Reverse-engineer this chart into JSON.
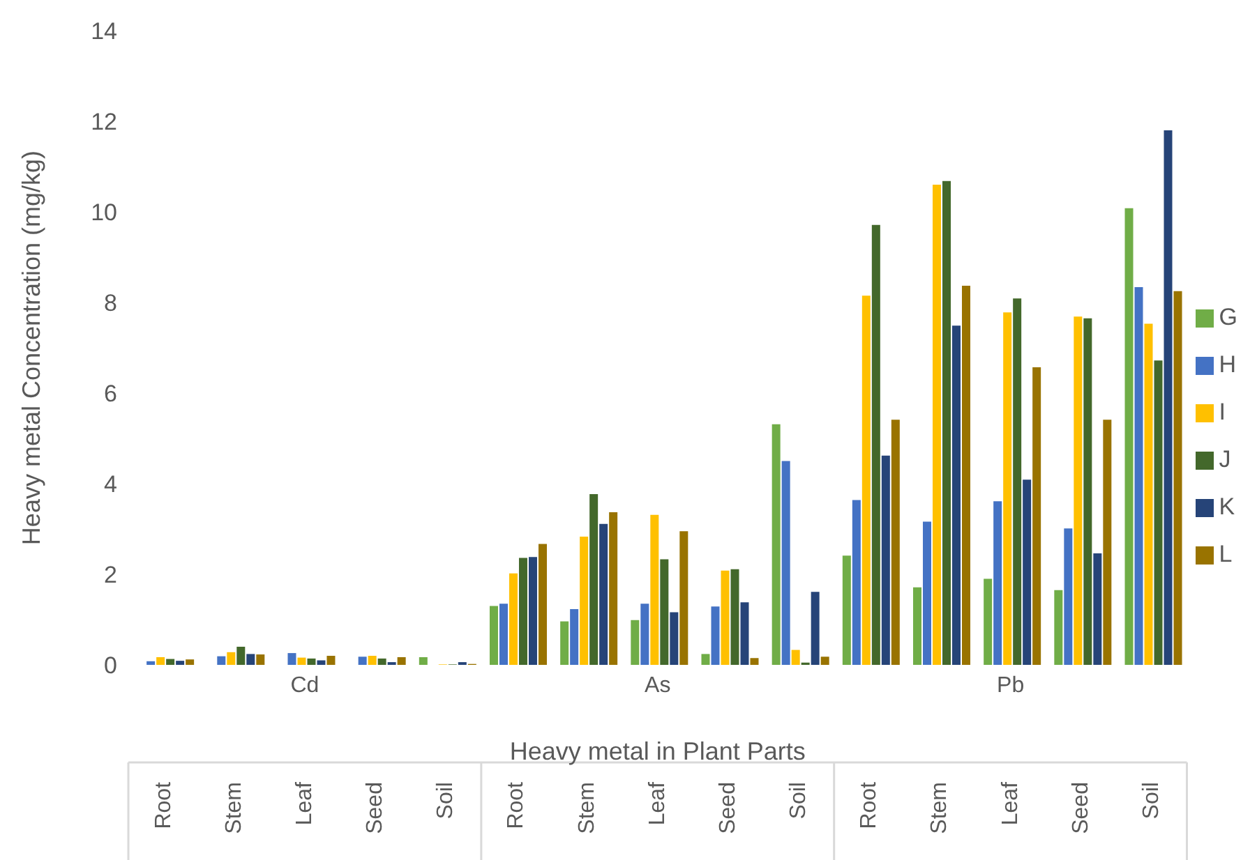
{
  "chart_data": {
    "type": "bar",
    "xlabel": "Heavy metal in Plant Parts",
    "ylabel": "Heavy metal Concentration (mg/kg)",
    "categories": [
      "Root",
      "Stem",
      "Leaf",
      "Seed",
      "Soil",
      "Root",
      "Stem",
      "Leaf",
      "Seed",
      "Soil",
      "Root",
      "Stem",
      "Leaf",
      "Seed",
      "Soil"
    ],
    "annotations": [
      "Cd",
      "As",
      "Pb"
    ],
    "series": [
      {
        "name": "G",
        "color": "#70ad47",
        "values": [
          0,
          0,
          0,
          0,
          0.17,
          1.3,
          0.96,
          0.99,
          0.24,
          5.31,
          2.41,
          1.71,
          1.9,
          1.65,
          10.08
        ]
      },
      {
        "name": "H",
        "color": "#4472c4",
        "values": [
          0.08,
          0.19,
          0.26,
          0.18,
          0,
          1.35,
          1.23,
          1.35,
          1.29,
          4.5,
          3.64,
          3.16,
          3.61,
          3.01,
          8.34
        ]
      },
      {
        "name": "I",
        "color": "#ffc000",
        "values": [
          0.17,
          0.28,
          0.16,
          0.2,
          0.01,
          2.02,
          2.83,
          3.31,
          2.08,
          0.33,
          8.15,
          10.6,
          7.78,
          7.69,
          7.53
        ]
      },
      {
        "name": "J",
        "color": "#43682b",
        "values": [
          0.13,
          0.4,
          0.14,
          0.14,
          0.01,
          2.36,
          3.77,
          2.33,
          2.11,
          0.05,
          9.71,
          10.68,
          8.09,
          7.65,
          6.72
        ]
      },
      {
        "name": "K",
        "color": "#264478",
        "values": [
          0.09,
          0.24,
          0.1,
          0.06,
          0.06,
          2.38,
          3.11,
          1.16,
          1.38,
          1.61,
          4.62,
          7.49,
          4.09,
          2.46,
          11.8
        ]
      },
      {
        "name": "L",
        "color": "#997300",
        "values": [
          0.12,
          0.23,
          0.2,
          0.17,
          0.02,
          2.67,
          3.37,
          2.95,
          0.15,
          0.18,
          5.41,
          8.37,
          6.57,
          5.41,
          8.25
        ]
      }
    ],
    "ylim": [
      0,
      14
    ],
    "yticks": [
      0,
      2,
      4,
      6,
      8,
      10,
      12,
      14
    ],
    "legend": "right"
  }
}
